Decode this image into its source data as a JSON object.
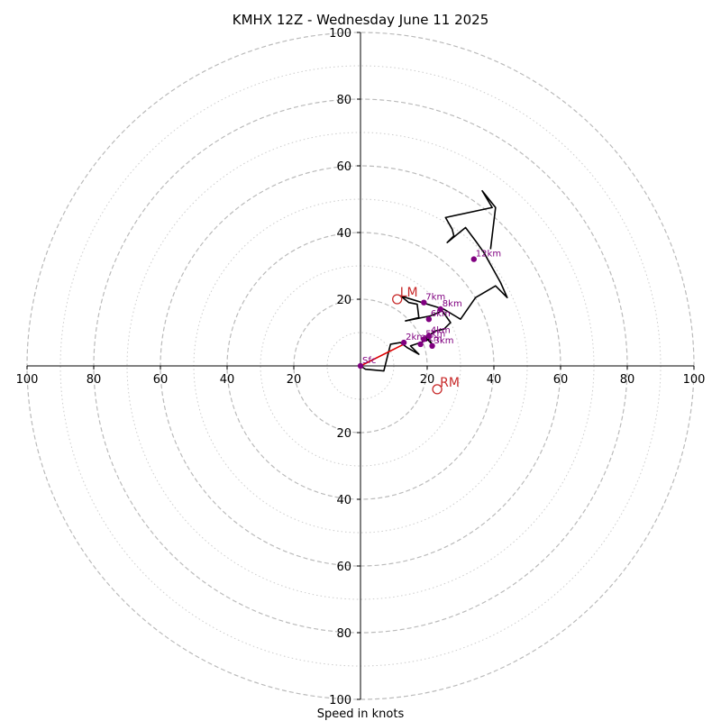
{
  "chart_data": {
    "type": "hodograph",
    "title": "KMHX 12Z - Wednesday June 11 2025",
    "xlabel": "Speed in knots",
    "units": "knots",
    "max_speed": 100,
    "rings_major": [
      20,
      40,
      60,
      80,
      100
    ],
    "rings_minor": [
      10,
      30,
      50,
      70,
      90
    ],
    "tick_values": [
      20,
      40,
      60,
      80,
      100
    ],
    "tick_labels": [
      "20",
      "40",
      "60",
      "80",
      "100"
    ],
    "grid": true,
    "colors": {
      "trace": "#000000",
      "shear": "#dd0000",
      "height_points": "#800080",
      "storm_motion": "#c82a2a",
      "ring_major": "#bbbbbb",
      "ring_minor": "#cccccc",
      "axes": "#000000"
    },
    "trace": [
      [
        0.0,
        0.0
      ],
      [
        1.5,
        -1.0
      ],
      [
        7.0,
        -1.5
      ],
      [
        9.0,
        6.5
      ],
      [
        12.0,
        7.0
      ],
      [
        14.0,
        5.5
      ],
      [
        17.5,
        3.5
      ],
      [
        15.0,
        6.0
      ],
      [
        18.0,
        7.0
      ],
      [
        20.5,
        8.0
      ],
      [
        21.5,
        6.5
      ],
      [
        19.5,
        8.5
      ],
      [
        22.5,
        10.5
      ],
      [
        25.0,
        11.0
      ],
      [
        27.0,
        13.0
      ],
      [
        24.5,
        16.5
      ],
      [
        21.0,
        15.0
      ],
      [
        13.5,
        13.5
      ],
      [
        17.5,
        14.5
      ],
      [
        17.0,
        18.5
      ],
      [
        14.5,
        19.0
      ],
      [
        12.0,
        21.0
      ],
      [
        25.0,
        17.0
      ],
      [
        30.0,
        14.0
      ],
      [
        34.5,
        20.5
      ],
      [
        40.5,
        24.0
      ],
      [
        44.0,
        20.5
      ],
      [
        42.0,
        25.0
      ],
      [
        37.0,
        34.0
      ],
      [
        34.5,
        37.5
      ],
      [
        31.5,
        41.5
      ],
      [
        26.0,
        37.0
      ],
      [
        28.0,
        39.0
      ],
      [
        27.5,
        41.0
      ],
      [
        25.5,
        44.5
      ],
      [
        39.5,
        47.5
      ],
      [
        36.5,
        52.5
      ],
      [
        40.5,
        47.5
      ],
      [
        39.0,
        35.0
      ]
    ],
    "shear_vector": [
      [
        0.0,
        0.0
      ],
      [
        13.0,
        6.5
      ]
    ],
    "height_points": [
      {
        "label": "Sfc",
        "u": 0.0,
        "v": 0.0
      },
      {
        "label": "1km",
        "u": 18.0,
        "v": 6.5
      },
      {
        "label": "2km",
        "u": 13.0,
        "v": 7.0
      },
      {
        "label": "3km",
        "u": 21.5,
        "v": 6.0
      },
      {
        "label": "4km",
        "u": 20.5,
        "v": 9.0
      },
      {
        "label": "5km",
        "u": 19.0,
        "v": 8.0
      },
      {
        "label": "6km",
        "u": 20.5,
        "v": 14.0
      },
      {
        "label": "7km",
        "u": 19.0,
        "v": 19.0
      },
      {
        "label": "8km",
        "u": 24.0,
        "v": 17.0
      },
      {
        "label": "12km",
        "u": 34.0,
        "v": 32.0
      }
    ],
    "storm_motion": [
      {
        "label": "LM",
        "u": 11.0,
        "v": 20.0
      },
      {
        "label": "RM",
        "u": 23.0,
        "v": -7.0
      }
    ]
  }
}
